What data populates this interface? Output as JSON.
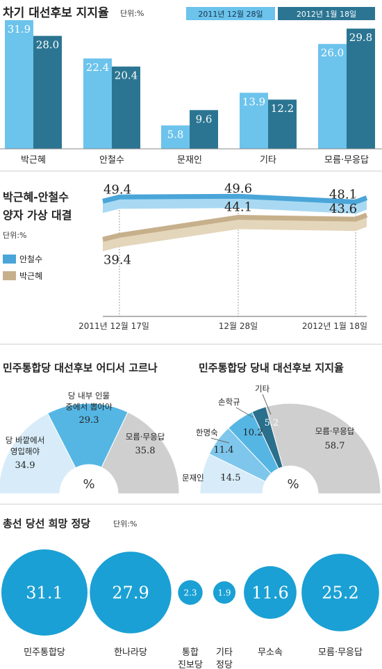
{
  "colors": {
    "light_blue": "#6cc3ec",
    "dark_teal": "#2b7592",
    "line_blue": "#4aa5d8",
    "line_tan": "#c6b08b",
    "donut_light": "#d7ecf8",
    "donut_blue": "#55b6e4",
    "donut_mid": "#7fc6ec",
    "donut_dark": "#2a6f8c",
    "donut_gray": "#cfcfcf",
    "circle_blue": "#1aa0d4"
  },
  "chart_data": [
    {
      "type": "bar",
      "title": "차기 대선후보 지지율",
      "unit": "단위:%",
      "categories": [
        "박근혜",
        "안철수",
        "문재인",
        "기타",
        "모름·무응답"
      ],
      "series": [
        {
          "name": "2011년 12월 28일",
          "values": [
            31.9,
            22.4,
            5.8,
            13.9,
            26.0
          ],
          "labels": [
            "31.9",
            "22.4",
            "5.8",
            "13.9",
            "26.0"
          ]
        },
        {
          "name": "2012년 1월 18일",
          "values": [
            28.0,
            20.4,
            9.6,
            12.2,
            29.8
          ],
          "labels": [
            "28.0",
            "20.4",
            "9.6",
            "12.2",
            "29.8"
          ]
        }
      ],
      "ylim": [
        0,
        32
      ]
    },
    {
      "type": "line",
      "title_lines": [
        "박근혜-안철수",
        "양자 가상 대결"
      ],
      "unit": "단위:%",
      "x": [
        "2011년 12월 17일",
        "12월 28일",
        "2012년 1월 18일"
      ],
      "series": [
        {
          "name": "안철수",
          "values": [
            49.4,
            49.6,
            48.1
          ],
          "labels": [
            "49.4",
            "49.6",
            "48.1"
          ]
        },
        {
          "name": "박근혜",
          "values": [
            39.4,
            44.1,
            43.6
          ],
          "labels": [
            "39.4",
            "44.1",
            "43.6"
          ]
        }
      ]
    },
    {
      "type": "pie",
      "title": "민주통합당 대선후보 어디서 고르나",
      "center_label": "%",
      "slices": [
        {
          "label_lines": [
            "당 바깥에서",
            "영입해야"
          ],
          "value": 34.9,
          "value_label": "34.9"
        },
        {
          "label_lines": [
            "당 내부 인물",
            "중에서 뽑아야"
          ],
          "value": 29.3,
          "value_label": "29.3"
        },
        {
          "label_lines": [
            "모름·무응답"
          ],
          "value": 35.8,
          "value_label": "35.8"
        }
      ]
    },
    {
      "type": "pie",
      "title": "민주통합당 당내 대선후보 지지율",
      "center_label": "%",
      "slices": [
        {
          "label": "문재인",
          "value": 14.5,
          "value_label": "14.5"
        },
        {
          "label": "한명숙",
          "value": 11.4,
          "value_label": "11.4"
        },
        {
          "label": "손학규",
          "value": 10.2,
          "value_label": "10.2"
        },
        {
          "label": "기타",
          "value": 5.2,
          "value_label": "5.2"
        },
        {
          "label": "모름·무응답",
          "value": 58.7,
          "value_label": "58.7"
        }
      ]
    },
    {
      "type": "bubble",
      "title": "총선 당선 희망 정당",
      "unit": "단위:%",
      "items": [
        {
          "label_lines": [
            "민주통합당"
          ],
          "value": 31.1,
          "value_label": "31.1"
        },
        {
          "label_lines": [
            "한나라당"
          ],
          "value": 27.9,
          "value_label": "27.9"
        },
        {
          "label_lines": [
            "통합",
            "진보당"
          ],
          "value": 2.3,
          "value_label": "2.3"
        },
        {
          "label_lines": [
            "기타",
            "정당"
          ],
          "value": 1.9,
          "value_label": "1.9"
        },
        {
          "label_lines": [
            "무소속"
          ],
          "value": 11.6,
          "value_label": "11.6"
        },
        {
          "label_lines": [
            "모름·무응답"
          ],
          "value": 25.2,
          "value_label": "25.2"
        }
      ]
    }
  ]
}
